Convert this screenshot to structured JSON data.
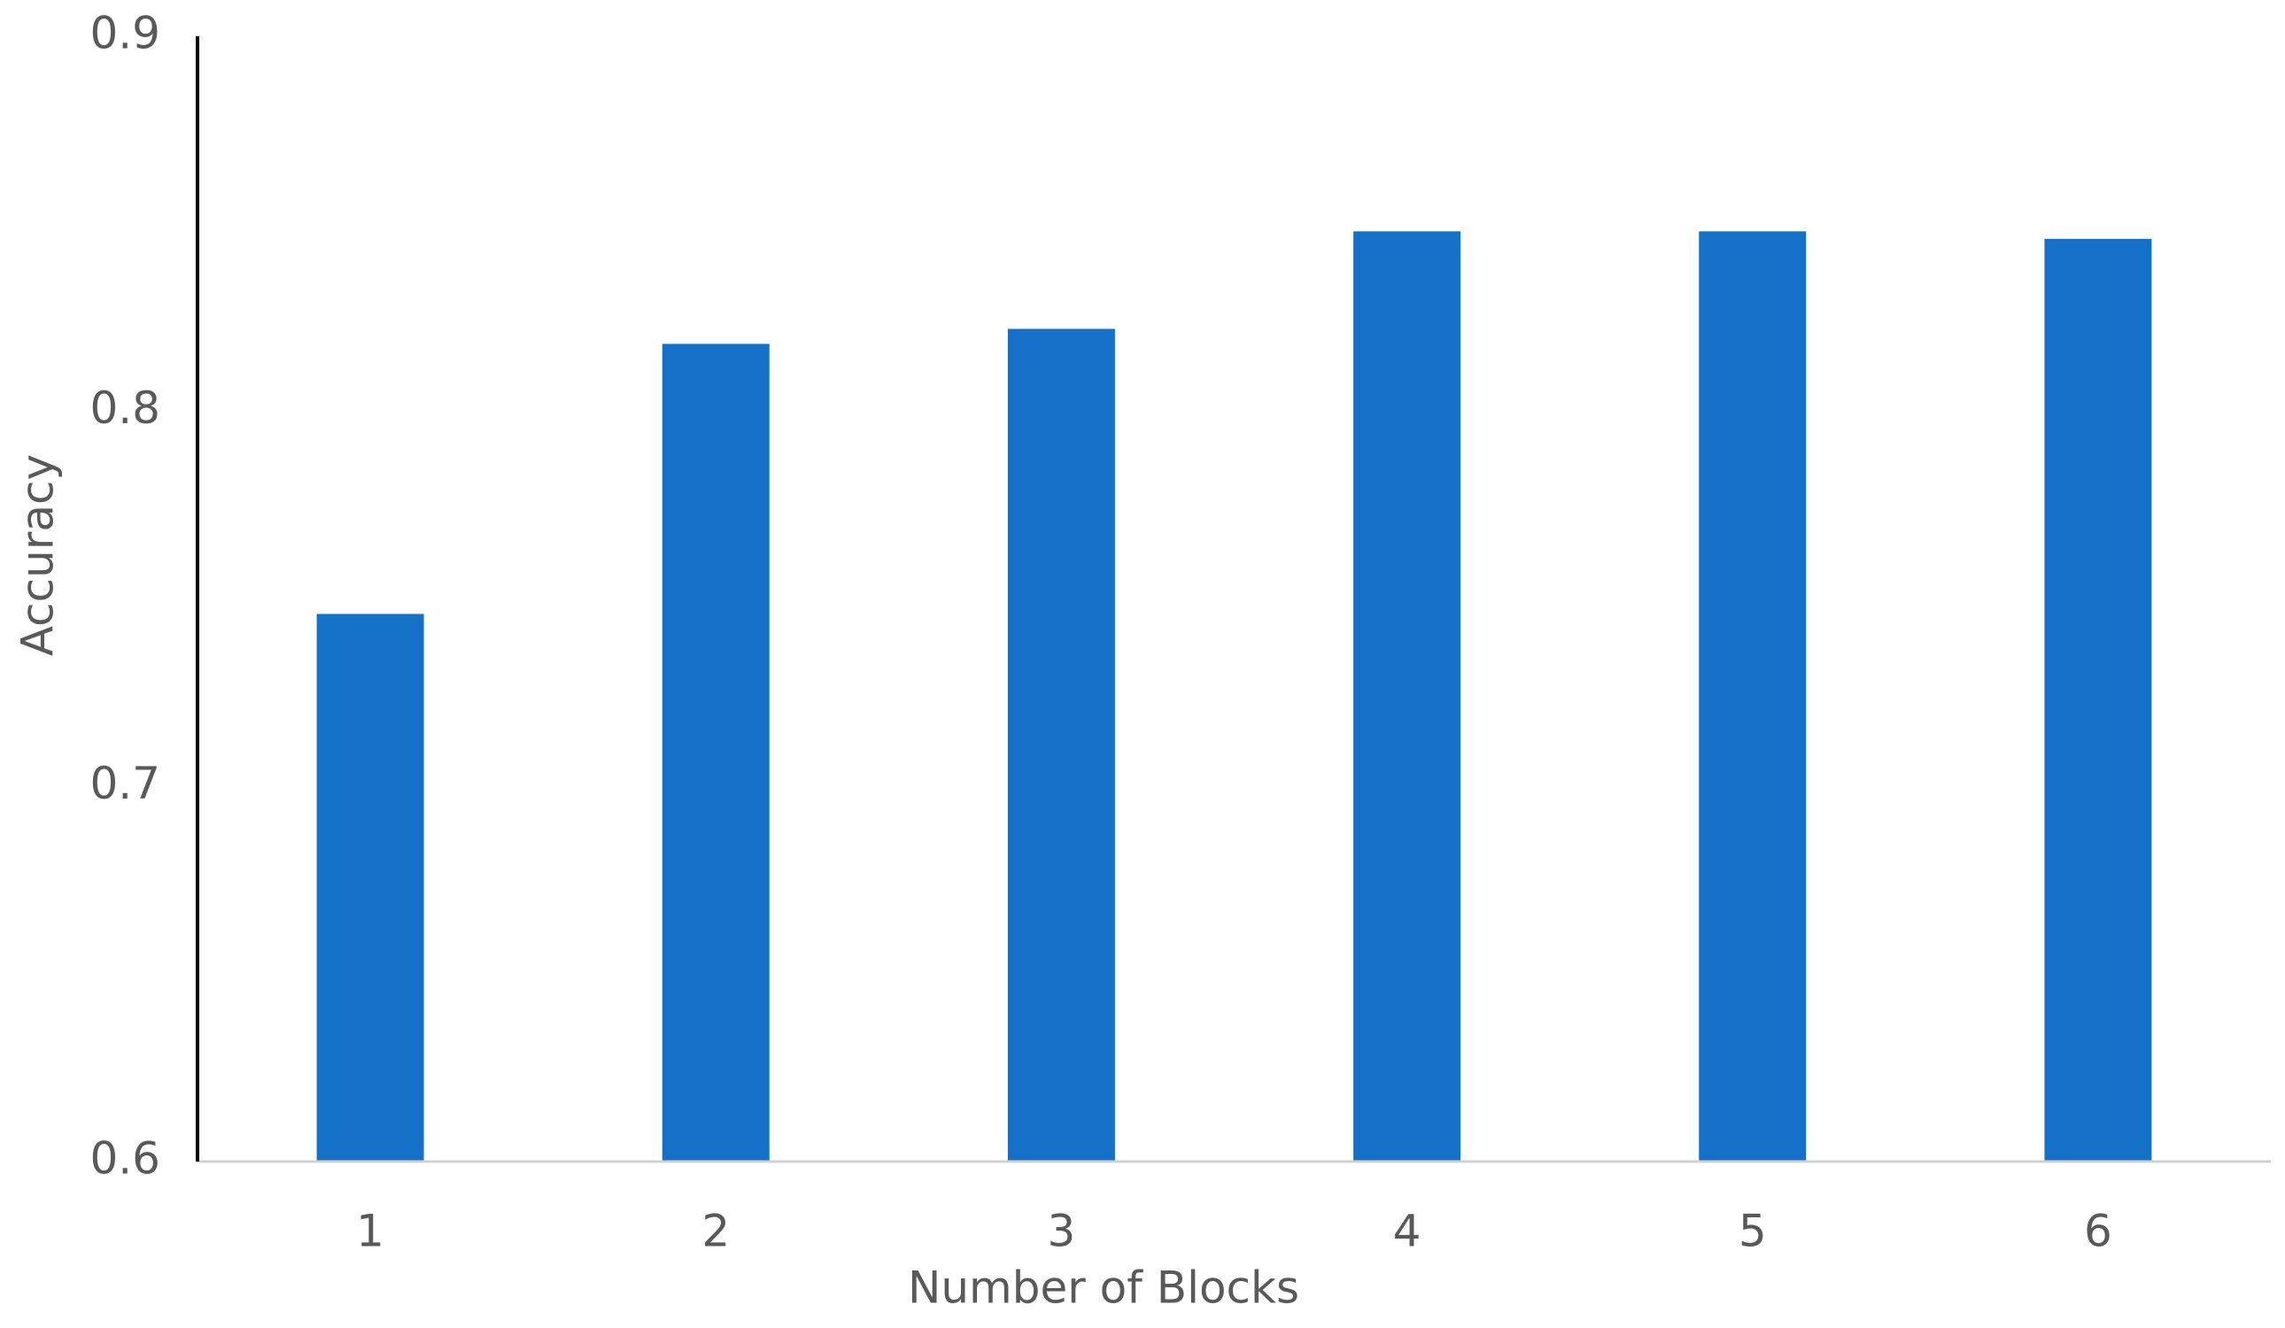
{
  "chart_data": {
    "type": "bar",
    "x_label": "Number of Blocks",
    "y_label": "Accuracy",
    "categories": [
      "1",
      "2",
      "3",
      "4",
      "5",
      "6"
    ],
    "values": [
      0.746,
      0.818,
      0.822,
      0.848,
      0.848,
      0.846
    ],
    "color": "#1570c8",
    "ylim": [
      0.6,
      0.9
    ],
    "yticks": [
      0.6,
      0.7,
      0.8,
      0.9
    ],
    "grid": false
  }
}
